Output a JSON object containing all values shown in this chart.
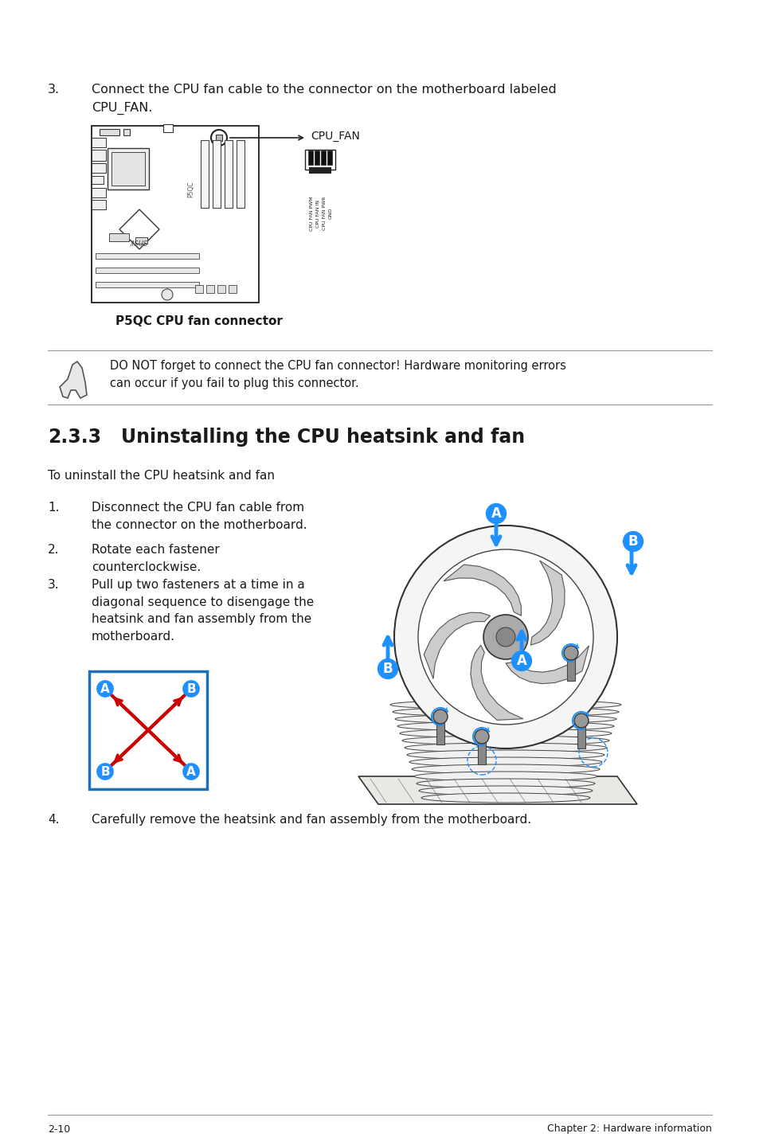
{
  "bg_color": "#ffffff",
  "footer_left": "2-10",
  "footer_right": "Chapter 2: Hardware information",
  "section_number": "2.3.3",
  "section_title": "Uninstalling the CPU heatsink and fan",
  "intro_text": "To uninstall the CPU heatsink and fan",
  "step1_num": "1.",
  "step1_text": "Disconnect the CPU fan cable from\nthe connector on the motherboard.",
  "step2_num": "2.",
  "step2_text": "Rotate each fastener\ncounterclockwise.",
  "step3_num": "3.",
  "step3_text": "Pull up two fasteners at a time in a\ndiagonal sequence to disengage the\nheatsink and fan assembly from the\nmotherboard.",
  "step4_num": "4.",
  "step4_text": "Carefully remove the heatsink and fan assembly from the motherboard.",
  "item3_num": "3.",
  "item3_text": "Connect the CPU fan cable to the connector on the motherboard labeled\nCPU_FAN.",
  "note_text": "DO NOT forget to connect the CPU fan connector! Hardware monitoring errors\ncan occur if you fail to plug this connector.",
  "label_cpu_fan": "CPU_FAN",
  "label_p5qc": "P5QC CPU fan connector",
  "blue_color": "#1e90ff",
  "red_color": "#cc0000",
  "dark_color": "#1a1a1a",
  "gray_color": "#888888",
  "light_gray": "#cccccc",
  "border_blue": "#1e6fb5",
  "line_color": "#999999"
}
